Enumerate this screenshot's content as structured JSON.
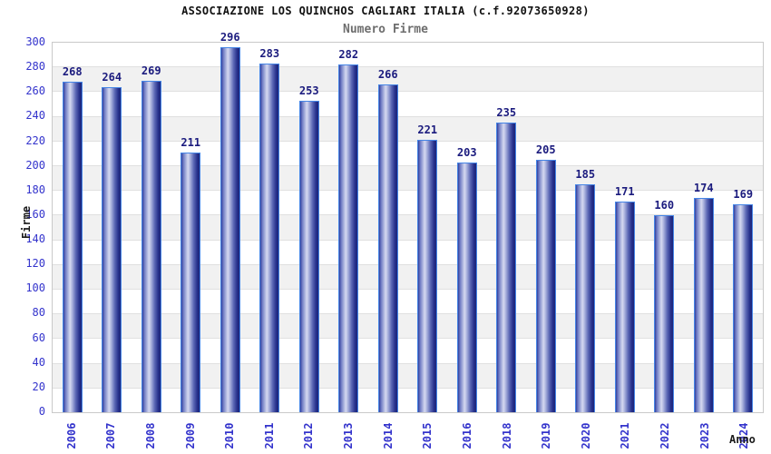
{
  "header": {
    "title": "ASSOCIAZIONE LOS QUINCHOS CAGLIARI ITALIA (c.f.92073650928)",
    "subtitle": "Numero Firme"
  },
  "chart_data": {
    "type": "bar",
    "title": "ASSOCIAZIONE LOS QUINCHOS CAGLIARI ITALIA (c.f.92073650928)",
    "subtitle": "Numero Firme",
    "xlabel": "Anno",
    "ylabel": "Firme",
    "categories": [
      "2006",
      "2007",
      "2008",
      "2009",
      "2010",
      "2011",
      "2012",
      "2013",
      "2014",
      "2015",
      "2016",
      "2018",
      "2019",
      "2020",
      "2021",
      "2022",
      "2023",
      "2024"
    ],
    "values": [
      268,
      264,
      269,
      211,
      296,
      283,
      253,
      282,
      266,
      221,
      203,
      235,
      205,
      185,
      171,
      160,
      174,
      169
    ],
    "ylim": [
      0,
      300
    ],
    "yticks": [
      0,
      20,
      40,
      60,
      80,
      100,
      120,
      140,
      160,
      180,
      200,
      220,
      240,
      260,
      280,
      300
    ],
    "grid": "horizontal-bands-20",
    "legend": "none",
    "colors": {
      "bar_edge": "#4585e6",
      "bar_dark": "#1c2579",
      "bar_light": "#d5d9f1",
      "value_label": "#1b1b7e",
      "axis_tick_label": "#3333cc",
      "band_gray": "#f1f1f1",
      "band_white": "#ffffff",
      "plot_border": "#c9c9c9",
      "title": "#111111",
      "subtitle": "#6e6e6e",
      "axis_title": "#1a1a1a"
    }
  }
}
